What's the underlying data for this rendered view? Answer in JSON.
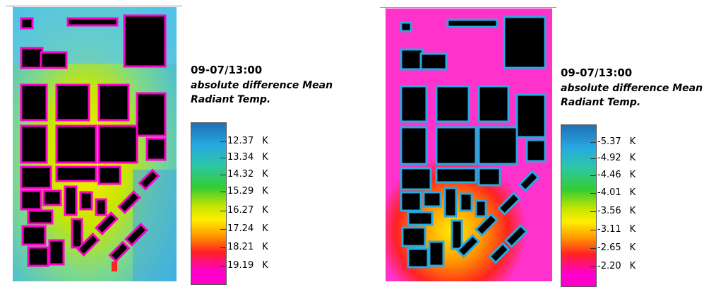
{
  "panels": [
    {
      "timestamp": "09-07/13:00",
      "variable_line1": "absolute difference Mean",
      "variable_line2": "Radiant Temp.",
      "unit": "K",
      "legend_values": [
        "12.37",
        "13.34",
        "14.32",
        "15.29",
        "16.27",
        "17.24",
        "18.21",
        "19.19"
      ],
      "colormap": "blue-cyan-green-yellow-red-magenta",
      "map_background": "#5bc8e6"
    },
    {
      "timestamp": "09-07/13:00",
      "variable_line1": "absolute difference Mean",
      "variable_line2": "Radiant Temp.",
      "unit": "K",
      "legend_values": [
        "-5.37",
        "-4.92",
        "-4.46",
        "-4.01",
        "-3.56",
        "-3.11",
        "-2.65",
        "-2.20"
      ],
      "colormap": "blue-cyan-green-yellow-red-magenta",
      "map_background": "#ff33cc"
    }
  ],
  "colors": {
    "building": "#000000",
    "scale": [
      "#1f6fb4",
      "#27a9e1",
      "#2cc7a8",
      "#33cc33",
      "#c8e600",
      "#ffee00",
      "#ff9900",
      "#ff2222",
      "#ff00cc"
    ]
  }
}
